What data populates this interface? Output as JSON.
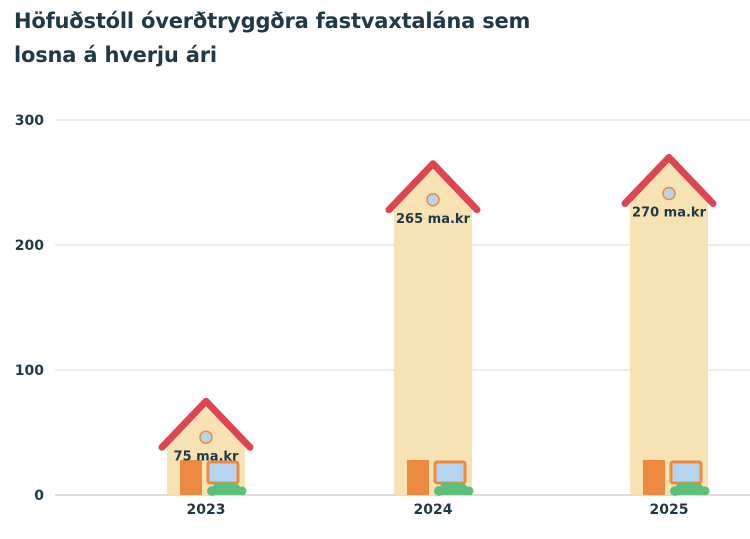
{
  "title_line1": "Höfuðstóll óverðtryggðra fastvaxtalána sem",
  "title_line2": "losna á hverju ári",
  "colors": {
    "body": "#f7e2b4",
    "roof": "#dd4550",
    "door": "#ec8a42",
    "window": "#b6d4ee",
    "bush": "#5cc07a",
    "grid": "#d8d8d8",
    "text": "#1f3a46"
  },
  "chart_data": {
    "type": "bar",
    "categories": [
      "2023",
      "2024",
      "2025"
    ],
    "values": [
      75,
      265,
      270
    ],
    "data_labels": [
      "75 ma.kr",
      "265 ma.kr",
      "270 ma.kr"
    ],
    "yticks": [
      0,
      100,
      200,
      300
    ],
    "ylim": [
      0,
      300
    ],
    "grid": true,
    "xlabel": "",
    "ylabel": ""
  }
}
